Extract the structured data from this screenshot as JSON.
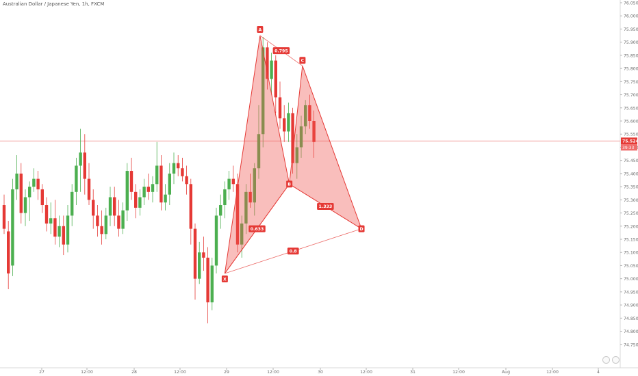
{
  "window": {
    "title": "Australian Dollar / Japanese Yen, 1h, FXCM"
  },
  "colors": {
    "up": "#4caf50",
    "down": "#e53935",
    "pattern_fill": "rgba(239,83,80,0.38)",
    "pattern_stroke": "#e53935",
    "price_line": "#f4a6a4",
    "axis_text": "#6b6b6b",
    "price_label_bg": "#e53935"
  },
  "chart_data": {
    "type": "candlestick",
    "title": "Australian Dollar / Japanese Yen, 1h, FXCM",
    "price_axis": {
      "ylim": [
        74.7,
        76.05
      ],
      "ticks": [
        "76.050",
        "76.000",
        "75.950",
        "75.900",
        "75.850",
        "75.800",
        "75.750",
        "75.700",
        "75.650",
        "75.600",
        "75.550",
        "75.500",
        "75.450",
        "75.400",
        "75.350",
        "75.300",
        "75.250",
        "75.200",
        "75.150",
        "75.100",
        "75.050",
        "75.000",
        "74.950",
        "74.900",
        "74.850",
        "74.800",
        "74.750"
      ]
    },
    "time_axis": {
      "labels": [
        "27",
        "12:00",
        "28",
        "12:00",
        "29",
        "12:00",
        "30",
        "12:00",
        "31",
        "12:00",
        "Aug",
        "12:00",
        "4"
      ]
    },
    "current_price": {
      "value": 75.524,
      "label": "75.524",
      "countdown": "39:33"
    },
    "candles": [
      {
        "o": 75.28,
        "h": 75.32,
        "l": 75.17,
        "c": 75.19
      },
      {
        "o": 75.18,
        "h": 75.22,
        "l": 74.96,
        "c": 75.02
      },
      {
        "o": 75.05,
        "h": 75.38,
        "l": 75.01,
        "c": 75.34
      },
      {
        "o": 75.34,
        "h": 75.47,
        "l": 75.3,
        "c": 75.4
      },
      {
        "o": 75.4,
        "h": 75.44,
        "l": 75.21,
        "c": 75.25
      },
      {
        "o": 75.25,
        "h": 75.34,
        "l": 75.2,
        "c": 75.31
      },
      {
        "o": 75.31,
        "h": 75.37,
        "l": 75.22,
        "c": 75.35
      },
      {
        "o": 75.35,
        "h": 75.42,
        "l": 75.33,
        "c": 75.38
      },
      {
        "o": 75.38,
        "h": 75.41,
        "l": 75.3,
        "c": 75.34
      },
      {
        "o": 75.34,
        "h": 75.36,
        "l": 75.25,
        "c": 75.28
      },
      {
        "o": 75.28,
        "h": 75.31,
        "l": 75.18,
        "c": 75.21
      },
      {
        "o": 75.21,
        "h": 75.29,
        "l": 75.17,
        "c": 75.23
      },
      {
        "o": 75.23,
        "h": 75.3,
        "l": 75.13,
        "c": 75.16
      },
      {
        "o": 75.16,
        "h": 75.24,
        "l": 75.12,
        "c": 75.2
      },
      {
        "o": 75.2,
        "h": 75.24,
        "l": 75.09,
        "c": 75.13
      },
      {
        "o": 75.13,
        "h": 75.28,
        "l": 75.1,
        "c": 75.24
      },
      {
        "o": 75.24,
        "h": 75.36,
        "l": 75.2,
        "c": 75.33
      },
      {
        "o": 75.33,
        "h": 75.46,
        "l": 75.28,
        "c": 75.43
      },
      {
        "o": 75.43,
        "h": 75.57,
        "l": 75.33,
        "c": 75.48
      },
      {
        "o": 75.48,
        "h": 75.55,
        "l": 75.32,
        "c": 75.38
      },
      {
        "o": 75.38,
        "h": 75.44,
        "l": 75.28,
        "c": 75.3
      },
      {
        "o": 75.3,
        "h": 75.34,
        "l": 75.19,
        "c": 75.24
      },
      {
        "o": 75.24,
        "h": 75.28,
        "l": 75.16,
        "c": 75.2
      },
      {
        "o": 75.2,
        "h": 75.26,
        "l": 75.13,
        "c": 75.17
      },
      {
        "o": 75.17,
        "h": 75.27,
        "l": 75.15,
        "c": 75.24
      },
      {
        "o": 75.24,
        "h": 75.35,
        "l": 75.2,
        "c": 75.31
      },
      {
        "o": 75.31,
        "h": 75.35,
        "l": 75.2,
        "c": 75.24
      },
      {
        "o": 75.24,
        "h": 75.3,
        "l": 75.16,
        "c": 75.19
      },
      {
        "o": 75.19,
        "h": 75.29,
        "l": 75.17,
        "c": 75.26
      },
      {
        "o": 75.26,
        "h": 75.44,
        "l": 75.22,
        "c": 75.41
      },
      {
        "o": 75.41,
        "h": 75.46,
        "l": 75.3,
        "c": 75.33
      },
      {
        "o": 75.33,
        "h": 75.36,
        "l": 75.23,
        "c": 75.27
      },
      {
        "o": 75.27,
        "h": 75.34,
        "l": 75.24,
        "c": 75.31
      },
      {
        "o": 75.31,
        "h": 75.38,
        "l": 75.28,
        "c": 75.35
      },
      {
        "o": 75.35,
        "h": 75.4,
        "l": 75.3,
        "c": 75.33
      },
      {
        "o": 75.33,
        "h": 75.39,
        "l": 75.29,
        "c": 75.36
      },
      {
        "o": 75.36,
        "h": 75.52,
        "l": 75.33,
        "c": 75.43
      },
      {
        "o": 75.43,
        "h": 75.47,
        "l": 75.26,
        "c": 75.29
      },
      {
        "o": 75.29,
        "h": 75.36,
        "l": 75.26,
        "c": 75.32
      },
      {
        "o": 75.32,
        "h": 75.44,
        "l": 75.28,
        "c": 75.4
      },
      {
        "o": 75.4,
        "h": 75.48,
        "l": 75.36,
        "c": 75.44
      },
      {
        "o": 75.44,
        "h": 75.47,
        "l": 75.39,
        "c": 75.42
      },
      {
        "o": 75.42,
        "h": 75.46,
        "l": 75.37,
        "c": 75.39
      },
      {
        "o": 75.39,
        "h": 75.43,
        "l": 75.32,
        "c": 75.36
      },
      {
        "o": 75.36,
        "h": 75.38,
        "l": 75.13,
        "c": 75.19
      },
      {
        "o": 75.19,
        "h": 75.21,
        "l": 74.92,
        "c": 75.0
      },
      {
        "o": 75.0,
        "h": 75.14,
        "l": 74.98,
        "c": 75.1
      },
      {
        "o": 75.1,
        "h": 75.16,
        "l": 75.03,
        "c": 75.08
      },
      {
        "o": 75.08,
        "h": 75.12,
        "l": 74.83,
        "c": 74.91
      },
      {
        "o": 74.91,
        "h": 75.08,
        "l": 74.88,
        "c": 75.05
      },
      {
        "o": 75.05,
        "h": 75.27,
        "l": 75.02,
        "c": 75.24
      },
      {
        "o": 75.24,
        "h": 75.32,
        "l": 75.19,
        "c": 75.28
      },
      {
        "o": 75.28,
        "h": 75.37,
        "l": 75.23,
        "c": 75.34
      },
      {
        "o": 75.34,
        "h": 75.41,
        "l": 75.3,
        "c": 75.38
      },
      {
        "o": 75.38,
        "h": 75.43,
        "l": 75.33,
        "c": 75.36
      },
      {
        "o": 75.36,
        "h": 75.4,
        "l": 75.1,
        "c": 75.13
      },
      {
        "o": 75.13,
        "h": 75.24,
        "l": 75.08,
        "c": 75.21
      },
      {
        "o": 75.21,
        "h": 75.36,
        "l": 75.17,
        "c": 75.33
      },
      {
        "o": 75.33,
        "h": 75.4,
        "l": 75.27,
        "c": 75.29
      },
      {
        "o": 75.29,
        "h": 75.44,
        "l": 75.24,
        "c": 75.42
      },
      {
        "o": 75.42,
        "h": 75.66,
        "l": 75.38,
        "c": 75.55
      },
      {
        "o": 75.55,
        "h": 75.92,
        "l": 75.5,
        "c": 75.88
      },
      {
        "o": 75.88,
        "h": 75.9,
        "l": 75.72,
        "c": 75.76
      },
      {
        "o": 75.76,
        "h": 75.86,
        "l": 75.7,
        "c": 75.83
      },
      {
        "o": 75.83,
        "h": 75.85,
        "l": 75.63,
        "c": 75.69
      },
      {
        "o": 75.69,
        "h": 75.75,
        "l": 75.57,
        "c": 75.61
      },
      {
        "o": 75.61,
        "h": 75.66,
        "l": 75.52,
        "c": 75.56
      },
      {
        "o": 75.56,
        "h": 75.67,
        "l": 75.52,
        "c": 75.63
      },
      {
        "o": 75.63,
        "h": 75.65,
        "l": 75.4,
        "c": 75.44
      },
      {
        "o": 75.44,
        "h": 75.55,
        "l": 75.38,
        "c": 75.5
      },
      {
        "o": 75.5,
        "h": 75.62,
        "l": 75.46,
        "c": 75.58
      },
      {
        "o": 75.58,
        "h": 75.68,
        "l": 75.55,
        "c": 75.66
      },
      {
        "o": 75.66,
        "h": 75.7,
        "l": 75.57,
        "c": 75.6
      },
      {
        "o": 75.6,
        "h": 75.64,
        "l": 75.46,
        "c": 75.52
      }
    ],
    "harmonic_pattern": {
      "points": {
        "X": {
          "candle": 52,
          "price": 75.02
        },
        "A": {
          "candle": 60.3,
          "price": 75.925
        },
        "B": {
          "candle": 67.2,
          "price": 75.36
        },
        "C": {
          "candle": 70.3,
          "price": 75.81
        },
        "D": {
          "candle": 84.2,
          "price": 75.19
        }
      },
      "point_labels": [
        "X",
        "A",
        "B",
        "C",
        "D"
      ],
      "ratios": [
        {
          "label": "0.795",
          "from": "A",
          "to": "C"
        },
        {
          "label": "0.633",
          "from": "X",
          "to": "B"
        },
        {
          "label": "1.333",
          "from": "B",
          "to": "D"
        },
        {
          "label": "0.8",
          "from": "X",
          "to": "D"
        }
      ]
    }
  }
}
